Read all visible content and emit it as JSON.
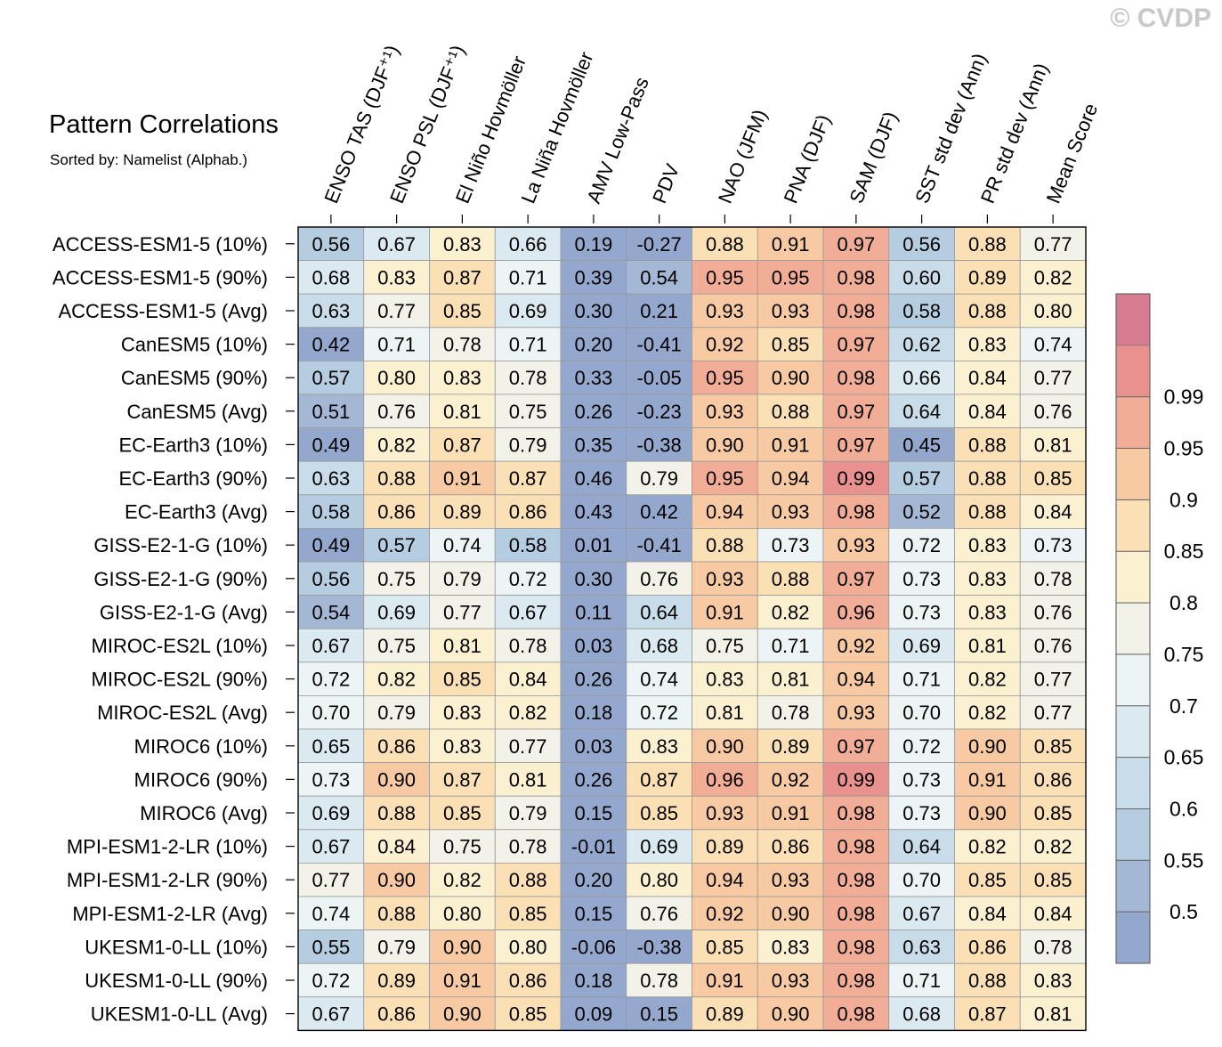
{
  "chart_data": {
    "type": "heatmap",
    "title": "Pattern Correlations",
    "subtitle": "Sorted by: Namelist (Alphab.)",
    "copyright": "© CVDP",
    "columns": [
      "ENSO TAS (DJF⁺¹)",
      "ENSO PSL (DJF⁺¹)",
      "El Niño Hovmöller",
      "La Niña Hovmöller",
      "AMV Low-Pass",
      "PDV",
      "NAO (JFM)",
      "PNA (DJF)",
      "SAM (DJF)",
      "SST std dev (Ann)",
      "PR std dev (Ann)",
      "Mean Score"
    ],
    "rows": [
      "ACCESS-ESM1-5 (10%)",
      "ACCESS-ESM1-5 (90%)",
      "ACCESS-ESM1-5 (Avg)",
      "CanESM5 (10%)",
      "CanESM5 (90%)",
      "CanESM5 (Avg)",
      "EC-Earth3 (10%)",
      "EC-Earth3 (90%)",
      "EC-Earth3 (Avg)",
      "GISS-E2-1-G (10%)",
      "GISS-E2-1-G (90%)",
      "GISS-E2-1-G (Avg)",
      "MIROC-ES2L (10%)",
      "MIROC-ES2L (90%)",
      "MIROC-ES2L (Avg)",
      "MIROC6 (10%)",
      "MIROC6 (90%)",
      "MIROC6 (Avg)",
      "MPI-ESM1-2-LR (10%)",
      "MPI-ESM1-2-LR (90%)",
      "MPI-ESM1-2-LR (Avg)",
      "UKESM1-0-LL (10%)",
      "UKESM1-0-LL (90%)",
      "UKESM1-0-LL (Avg)"
    ],
    "values": [
      [
        "0.56",
        "0.67",
        "0.83",
        "0.66",
        "0.19",
        "-0.27",
        "0.88",
        "0.91",
        "0.97",
        "0.56",
        "0.88",
        "0.77"
      ],
      [
        "0.68",
        "0.83",
        "0.87",
        "0.71",
        "0.39",
        "0.54",
        "0.95",
        "0.95",
        "0.98",
        "0.60",
        "0.89",
        "0.82"
      ],
      [
        "0.63",
        "0.77",
        "0.85",
        "0.69",
        "0.30",
        "0.21",
        "0.93",
        "0.93",
        "0.98",
        "0.58",
        "0.88",
        "0.80"
      ],
      [
        "0.42",
        "0.71",
        "0.78",
        "0.71",
        "0.20",
        "-0.41",
        "0.92",
        "0.85",
        "0.97",
        "0.62",
        "0.83",
        "0.74"
      ],
      [
        "0.57",
        "0.80",
        "0.83",
        "0.78",
        "0.33",
        "-0.05",
        "0.95",
        "0.90",
        "0.98",
        "0.66",
        "0.84",
        "0.77"
      ],
      [
        "0.51",
        "0.76",
        "0.81",
        "0.75",
        "0.26",
        "-0.23",
        "0.93",
        "0.88",
        "0.97",
        "0.64",
        "0.84",
        "0.76"
      ],
      [
        "0.49",
        "0.82",
        "0.87",
        "0.79",
        "0.35",
        "-0.38",
        "0.90",
        "0.91",
        "0.97",
        "0.45",
        "0.88",
        "0.81"
      ],
      [
        "0.63",
        "0.88",
        "0.91",
        "0.87",
        "0.46",
        "0.79",
        "0.95",
        "0.94",
        "0.99",
        "0.57",
        "0.88",
        "0.85"
      ],
      [
        "0.58",
        "0.86",
        "0.89",
        "0.86",
        "0.43",
        "0.42",
        "0.94",
        "0.93",
        "0.98",
        "0.52",
        "0.88",
        "0.84"
      ],
      [
        "0.49",
        "0.57",
        "0.74",
        "0.58",
        "0.01",
        "-0.41",
        "0.88",
        "0.73",
        "0.93",
        "0.72",
        "0.83",
        "0.73"
      ],
      [
        "0.56",
        "0.75",
        "0.79",
        "0.72",
        "0.30",
        "0.76",
        "0.93",
        "0.88",
        "0.97",
        "0.73",
        "0.83",
        "0.78"
      ],
      [
        "0.54",
        "0.69",
        "0.77",
        "0.67",
        "0.11",
        "0.64",
        "0.91",
        "0.82",
        "0.96",
        "0.73",
        "0.83",
        "0.76"
      ],
      [
        "0.67",
        "0.75",
        "0.81",
        "0.78",
        "0.03",
        "0.68",
        "0.75",
        "0.71",
        "0.92",
        "0.69",
        "0.81",
        "0.76"
      ],
      [
        "0.72",
        "0.82",
        "0.85",
        "0.84",
        "0.26",
        "0.74",
        "0.83",
        "0.81",
        "0.94",
        "0.71",
        "0.82",
        "0.77"
      ],
      [
        "0.70",
        "0.79",
        "0.83",
        "0.82",
        "0.18",
        "0.72",
        "0.81",
        "0.78",
        "0.93",
        "0.70",
        "0.82",
        "0.77"
      ],
      [
        "0.65",
        "0.86",
        "0.83",
        "0.77",
        "0.03",
        "0.83",
        "0.90",
        "0.89",
        "0.97",
        "0.72",
        "0.90",
        "0.85"
      ],
      [
        "0.73",
        "0.90",
        "0.87",
        "0.81",
        "0.26",
        "0.87",
        "0.96",
        "0.92",
        "0.99",
        "0.73",
        "0.91",
        "0.86"
      ],
      [
        "0.69",
        "0.88",
        "0.85",
        "0.79",
        "0.15",
        "0.85",
        "0.93",
        "0.91",
        "0.98",
        "0.73",
        "0.90",
        "0.85"
      ],
      [
        "0.67",
        "0.84",
        "0.75",
        "0.78",
        "-0.01",
        "0.69",
        "0.89",
        "0.86",
        "0.98",
        "0.64",
        "0.82",
        "0.82"
      ],
      [
        "0.77",
        "0.90",
        "0.82",
        "0.88",
        "0.20",
        "0.80",
        "0.94",
        "0.93",
        "0.98",
        "0.70",
        "0.85",
        "0.85"
      ],
      [
        "0.74",
        "0.88",
        "0.80",
        "0.85",
        "0.15",
        "0.76",
        "0.92",
        "0.90",
        "0.98",
        "0.67",
        "0.84",
        "0.84"
      ],
      [
        "0.55",
        "0.79",
        "0.90",
        "0.80",
        "-0.06",
        "-0.38",
        "0.85",
        "0.83",
        "0.98",
        "0.63",
        "0.86",
        "0.78"
      ],
      [
        "0.72",
        "0.89",
        "0.91",
        "0.86",
        "0.18",
        "0.78",
        "0.91",
        "0.93",
        "0.98",
        "0.71",
        "0.88",
        "0.83"
      ],
      [
        "0.67",
        "0.86",
        "0.90",
        "0.85",
        "0.09",
        "0.15",
        "0.89",
        "0.90",
        "0.98",
        "0.68",
        "0.87",
        "0.81"
      ]
    ],
    "colorbar": {
      "ticks": [
        "0.5",
        "0.55",
        "0.6",
        "0.65",
        "0.7",
        "0.75",
        "0.8",
        "0.85",
        "0.9",
        "0.95",
        "0.99"
      ],
      "levels": [
        0.5,
        0.55,
        0.6,
        0.65,
        0.7,
        0.75,
        0.8,
        0.85,
        0.9,
        0.95,
        0.99
      ],
      "colors": [
        "#94a7cd",
        "#a4b8d6",
        "#b5cde1",
        "#c8dce9",
        "#dbeaf1",
        "#edf4f6",
        "#f3f2e8",
        "#fbf0d0",
        "#fbe0b6",
        "#f8caa3",
        "#f2ad97",
        "#e8918f",
        "#d57c91"
      ]
    }
  }
}
